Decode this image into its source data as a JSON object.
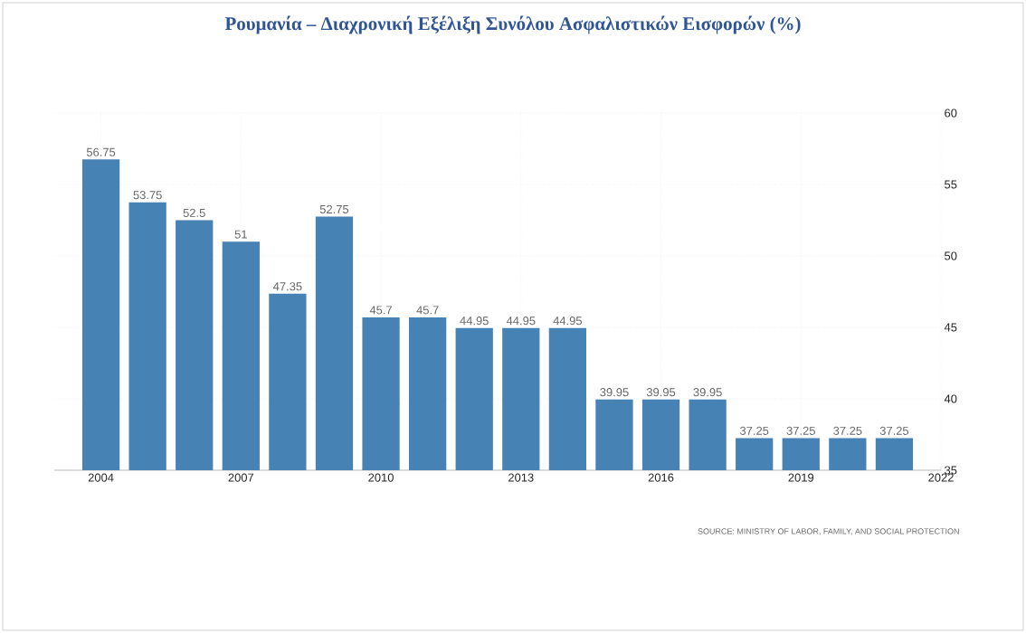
{
  "chart_data": {
    "type": "bar",
    "title": "Ρουμανία – Διαχρονική Εξέλιξη Συνόλου Ασφαλιστικών Εισφορών (%)",
    "x": [
      2004,
      2005,
      2006,
      2007,
      2008,
      2009,
      2010,
      2011,
      2012,
      2013,
      2014,
      2015,
      2016,
      2017,
      2018,
      2019,
      2020,
      2021
    ],
    "values": [
      56.75,
      53.75,
      52.5,
      51,
      47.35,
      52.75,
      45.7,
      45.7,
      44.95,
      44.95,
      44.95,
      39.95,
      39.95,
      39.95,
      37.25,
      37.25,
      37.25,
      37.25
    ],
    "color": "#4682b4",
    "xlim": [
      2003,
      2022
    ],
    "xticks": [
      2004,
      2007,
      2010,
      2013,
      2016,
      2019,
      2022
    ],
    "ylim": [
      35,
      60
    ],
    "yticks": [
      35,
      40,
      45,
      50,
      55,
      60
    ],
    "grid": true,
    "data_labels": true,
    "annotations": [
      "SOURCE: MINISTRY OF LABOR, FAMILY, AND SOCIAL PROTECTION"
    ]
  }
}
